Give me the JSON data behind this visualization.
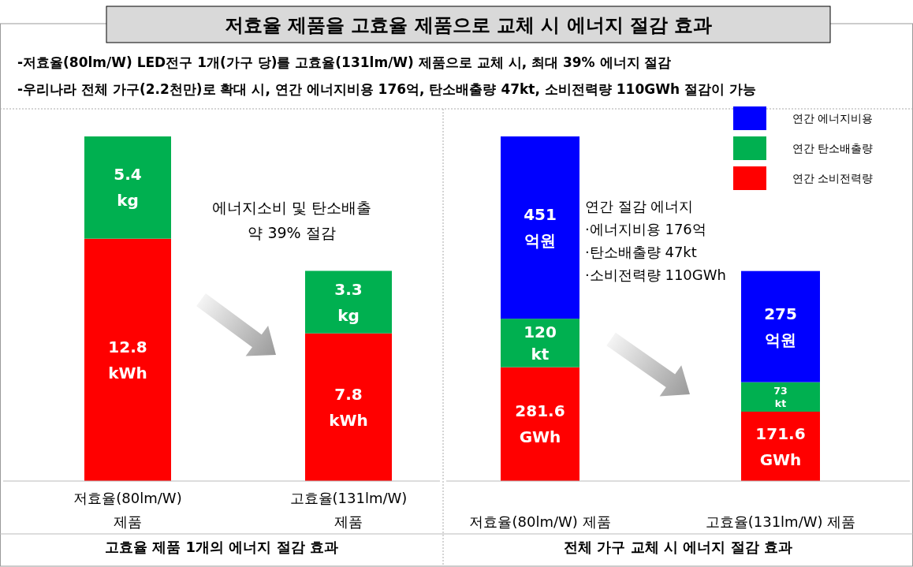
{
  "chart_data": [
    {
      "type": "bar",
      "stacked": true,
      "title": "저효율 제품을 고효율 제품으로 교체 시 에너지 절감 효과",
      "subtitle": "-저효율(80lm/W) LED전구 1개(가구 당)를 고효율(131lm/W) 제품으로 교체 시, 최대 39% 에너지 절감\n-우리나라 전체 가구(2.2천만)로 확대 시, 연간 에너지비용 176억, 탄소배출량 47kt, 소비전력량 110GWh 절감이 가능",
      "xlabel": "고효율 제품 1개의 에너지 절감 효과",
      "categories": [
        "저효율(80lm/W) 제품",
        "고효율(131lm/W) 제품"
      ],
      "annotations": [
        "에너지소비 및 탄소배출\n약 39% 절감"
      ],
      "series": [
        {
          "color": "#ff0000",
          "values": [
            12.8,
            7.8
          ],
          "value_labels": [
            "12.8\nkWh",
            "7.8\nkWh"
          ]
        },
        {
          "color": "#00b050",
          "values": [
            5.4,
            3.3
          ],
          "value_labels": [
            "5.4\nkg",
            "3.3\nkg"
          ]
        }
      ]
    },
    {
      "type": "bar",
      "stacked": true,
      "xlabel": "전체 가구 교체 시 에너지 절감 효과",
      "categories": [
        "저효율(80lm/W) 제품",
        "고효율(131lm/W) 제품"
      ],
      "legend": "top right",
      "annotations": [
        "연간 절감 에너지\n·에너지비용 176억\n·탄소배출량 47kt\n·소비전력량 110GWh"
      ],
      "series": [
        {
          "name": "연간 소비전력량",
          "color": "#ff0000",
          "values": [
            281.6,
            171.6
          ],
          "value_labels": [
            "281.6\nGWh",
            "171.6\nGWh"
          ]
        },
        {
          "name": "연간 탄소배출량",
          "color": "#00b050",
          "values": [
            120,
            73
          ],
          "value_labels": [
            "120\nkt",
            "73\nkt"
          ]
        },
        {
          "name": "연간 에너지비용",
          "color": "#0000ff",
          "values": [
            451,
            275
          ],
          "value_labels": [
            "451\n억원",
            "275\n억원"
          ]
        }
      ]
    }
  ]
}
